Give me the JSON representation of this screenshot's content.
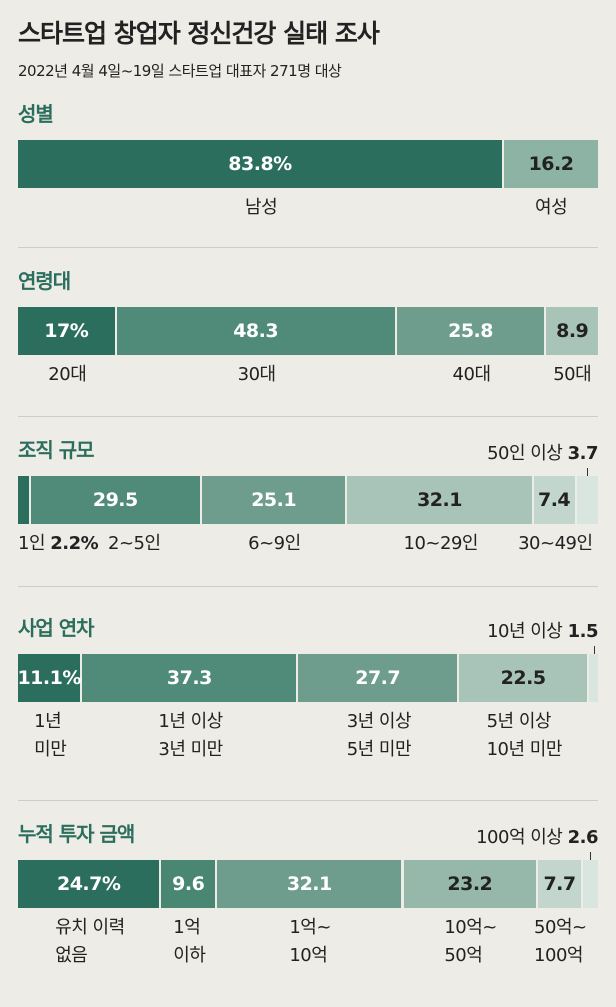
{
  "header": {
    "title": "스타트업 창업자 정신건강 실태 조사",
    "subtitle": "2022년 4월 4일~19일 스타트업 대표자 271명 대상"
  },
  "chart_data": [
    {
      "type": "stacked-bar",
      "title": "성별",
      "categories": [
        "남성",
        "여성"
      ],
      "values": [
        83.8,
        16.2
      ],
      "value_labels": [
        "83.8%",
        "16.2"
      ],
      "colors": [
        "#2b6e5d",
        "#8db3a5"
      ]
    },
    {
      "type": "stacked-bar",
      "title": "연령대",
      "categories": [
        "20대",
        "30대",
        "40대",
        "50대"
      ],
      "values": [
        17,
        48.3,
        25.8,
        8.9
      ],
      "value_labels": [
        "17%",
        "48.3",
        "25.8",
        "8.9"
      ],
      "colors": [
        "#2b6e5d",
        "#4f8b78",
        "#6f9d8d",
        "#a8c4b9"
      ]
    },
    {
      "type": "stacked-bar",
      "title": "조직 규모",
      "categories": [
        "1인",
        "2~5인",
        "6~9인",
        "10~29인",
        "30~49인",
        "50인 이상"
      ],
      "values": [
        2.2,
        29.5,
        25.1,
        32.1,
        7.4,
        3.7
      ],
      "value_labels": [
        "2.2%",
        "29.5",
        "25.1",
        "32.1",
        "7.4",
        "3.7"
      ],
      "colors": [
        "#2b6e5d",
        "#4f8b78",
        "#6f9d8d",
        "#a8c4b9",
        "#c3d6ce",
        "#d9e5df"
      ]
    },
    {
      "type": "stacked-bar",
      "title": "사업 연차",
      "categories": [
        "1년\n미만",
        "1년 이상\n3년 미만",
        "3년 이상\n5년 미만",
        "5년 이상\n10년 미만",
        "10년 이상"
      ],
      "values": [
        11.1,
        37.3,
        27.7,
        22.5,
        1.5
      ],
      "value_labels": [
        "11.1%",
        "37.3",
        "27.7",
        "22.5",
        "1.5"
      ],
      "colors": [
        "#2b6e5d",
        "#4f8b78",
        "#6f9d8d",
        "#a8c4b9",
        "#d9e5df"
      ]
    },
    {
      "type": "stacked-bar",
      "title": "누적 투자 금액",
      "categories": [
        "유치 이력\n없음",
        "1억\n이하",
        "1억~\n10억",
        "10억~\n50억",
        "50억~\n100억",
        "100억 이상"
      ],
      "values": [
        24.7,
        9.6,
        32.1,
        23.2,
        7.7,
        2.6
      ],
      "value_labels": [
        "24.7%",
        "9.6",
        "32.1",
        "23.2",
        "7.7",
        "2.6"
      ],
      "colors": [
        "#2b6e5d",
        "#4a8773",
        "#6f9d8d",
        "#96b8ab",
        "#c3d6ce",
        "#d9e5df"
      ]
    }
  ]
}
